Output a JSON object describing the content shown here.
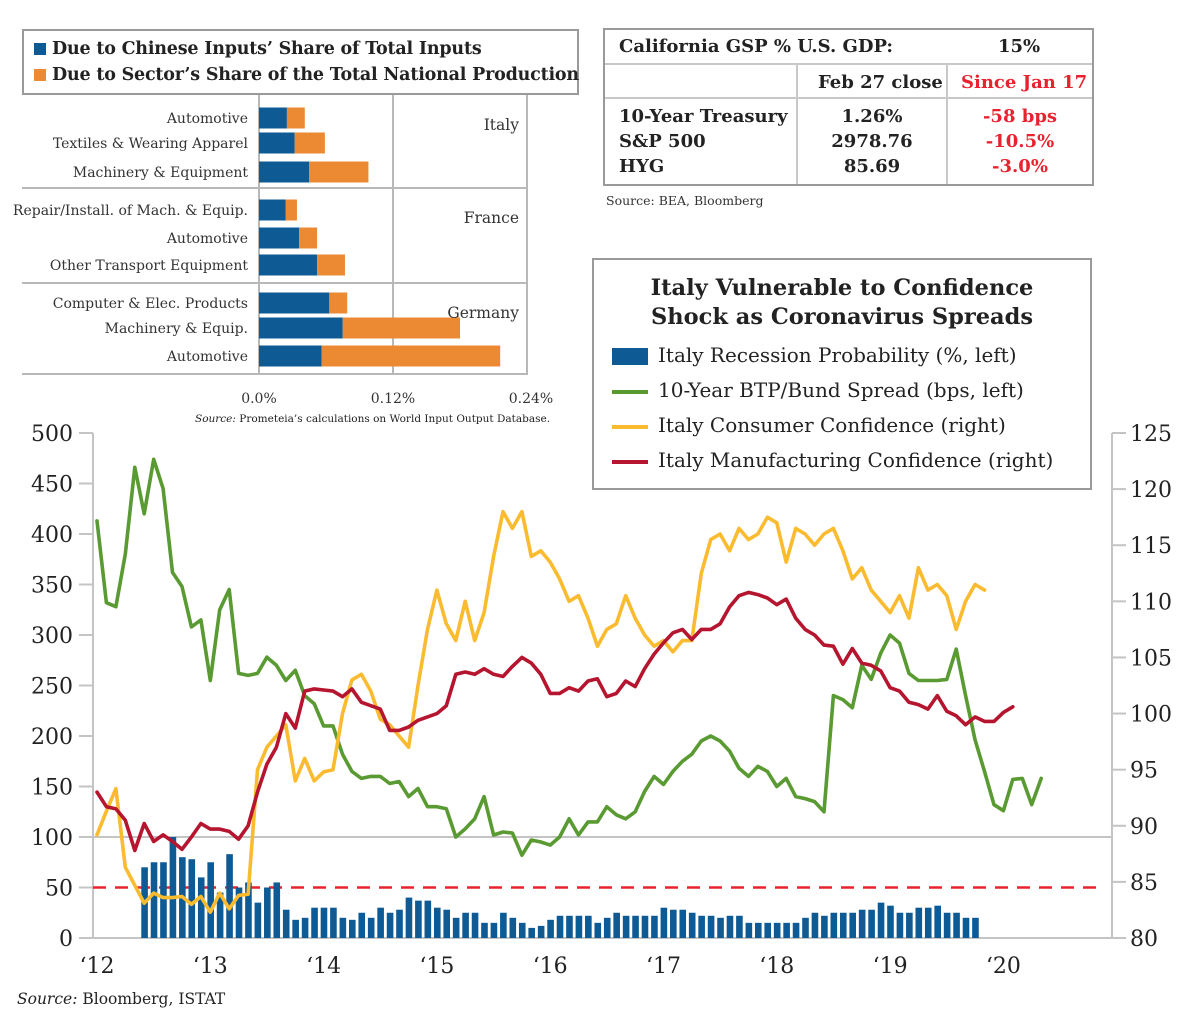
{
  "bar_chart_legend": {
    "items": [
      {
        "label": "Due to Chinese Inputs’ Share of Total Inputs",
        "color": "#0d5a94"
      },
      {
        "label": "Due to Sector’s Share of the Total National Production",
        "color": "#ec8a33"
      }
    ]
  },
  "market_table": {
    "header_label": "California GSP % U.S. GDP:",
    "header_value": "15%",
    "col_headers": [
      "Feb 27 close",
      "Since Jan 17"
    ],
    "rows": [
      {
        "name": "10-Year Treasury",
        "close": "1.26%",
        "change": "-58 bps"
      },
      {
        "name": "S&P 500",
        "close": "2978.76",
        "change": "-10.5%"
      },
      {
        "name": "HYG",
        "close": "85.69",
        "change": "-3.0%"
      }
    ],
    "source": "Source: BEA, Bloomberg"
  },
  "main_legend": {
    "title_line1": "Italy Vulnerable to Confidence",
    "title_line2": "Shock as Coronavirus Spreads",
    "items": [
      {
        "label": "Italy Recession Probability (%, left)",
        "color": "#0d5a94",
        "type": "bar"
      },
      {
        "label": "10-Year BTP/Bund Spread (bps, left)",
        "color": "#5a9a32",
        "type": "line"
      },
      {
        "label": "Italy Consumer Confidence (right)",
        "color": "#fbbb30",
        "type": "line"
      },
      {
        "label": "Italy Manufacturing Confidence (right)",
        "color": "#b5152f",
        "type": "line"
      }
    ]
  },
  "sources": {
    "bar_chart_source_italic": "Source:",
    "bar_chart_source_text": " Prometeia’s calculations on World Input Output Database.",
    "main_source_italic": "Source:",
    "main_source_text": " Bloomberg, ISTAT"
  },
  "chart_data": [
    {
      "type": "bar",
      "orientation": "horizontal-stacked",
      "title": "",
      "xlabel": "",
      "ylabel": "",
      "xlim": [
        0,
        0.24
      ],
      "x_ticks": [
        "0.0%",
        "0.12%",
        "0.24%"
      ],
      "groups": [
        {
          "name": "Italy",
          "categories": [
            "Automotive",
            "Textiles & Wearing Apparel",
            "Machinery & Equipment"
          ],
          "chinese_inputs": [
            0.025,
            0.032,
            0.045
          ],
          "sector_share": [
            0.016,
            0.027,
            0.053
          ]
        },
        {
          "name": "France",
          "categories": [
            "Repair/Install. of Mach. & Equip.",
            "Automotive",
            "Other Transport Equipment"
          ],
          "chinese_inputs": [
            0.024,
            0.036,
            0.052
          ],
          "sector_share": [
            0.01,
            0.016,
            0.025
          ]
        },
        {
          "name": "Germany",
          "categories": [
            "Computer &  Elec. Products",
            "Machinery & Equip.",
            "Automotive"
          ],
          "chinese_inputs": [
            0.063,
            0.075,
            0.056
          ],
          "sector_share": [
            0.016,
            0.105,
            0.16
          ]
        }
      ],
      "series_names": [
        "Due to Chinese Inputs’ Share of Total Inputs",
        "Due to Sector’s Share of the Total National Production"
      ],
      "grid": true
    },
    {
      "type": "line",
      "title": "Italy Vulnerable to Confidence Shock as Coronavirus Spreads",
      "x_ticks": [
        "‘12",
        "‘13",
        "‘14",
        "‘15",
        "‘16",
        "‘17",
        "‘18",
        "‘19",
        "‘20"
      ],
      "x_range_years": [
        2012.0,
        2020.25
      ],
      "left_axis": {
        "ylim": [
          0,
          500
        ],
        "ticks": [
          0,
          50,
          100,
          150,
          200,
          250,
          300,
          350,
          400,
          450,
          500
        ]
      },
      "right_axis": {
        "ylim": [
          80,
          125
        ],
        "ticks": [
          80,
          85,
          90,
          95,
          100,
          105,
          110,
          115,
          120,
          125
        ]
      },
      "reference_line": {
        "axis": "left",
        "value": 50,
        "style": "dashed",
        "color": "#e8232f"
      },
      "legend_position": "top-right",
      "series": [
        {
          "name": "Italy Recession Probability (%, left)",
          "type": "bar",
          "axis": "left",
          "start": 2012.42,
          "step_months": 1,
          "values": [
            70,
            75,
            75,
            100,
            80,
            78,
            60,
            75,
            45,
            83,
            50,
            55,
            35,
            50,
            55,
            28,
            18,
            20,
            30,
            30,
            30,
            20,
            18,
            25,
            20,
            30,
            25,
            28,
            40,
            37,
            37,
            30,
            28,
            20,
            25,
            25,
            15,
            15,
            25,
            20,
            15,
            10,
            12,
            18,
            22,
            22,
            22,
            22,
            15,
            20,
            25,
            22,
            22,
            22,
            22,
            30,
            28,
            28,
            25,
            22,
            22,
            20,
            22,
            22,
            15,
            15,
            15,
            15,
            15,
            15,
            20,
            25,
            22,
            25,
            25,
            25,
            28,
            28,
            35,
            32,
            25,
            25,
            30,
            30,
            32,
            25,
            25,
            20,
            20
          ]
        },
        {
          "name": "10-Year BTP/Bund Spread (bps, left)",
          "type": "line",
          "axis": "left",
          "start": 2012.0,
          "step_months": 1,
          "values": [
            413,
            332,
            328,
            380,
            466,
            420,
            474,
            445,
            362,
            348,
            308,
            315,
            255,
            325,
            345,
            262,
            260,
            262,
            278,
            270,
            255,
            265,
            240,
            232,
            210,
            210,
            182,
            165,
            158,
            160,
            160,
            153,
            155,
            140,
            148,
            130,
            130,
            128,
            100,
            108,
            118,
            140,
            102,
            105,
            104,
            82,
            97,
            95,
            92,
            100,
            118,
            102,
            115,
            115,
            130,
            122,
            118,
            125,
            145,
            160,
            152,
            165,
            175,
            182,
            195,
            200,
            195,
            185,
            168,
            160,
            170,
            165,
            150,
            158,
            140,
            138,
            135,
            125,
            240,
            236,
            228,
            270,
            256,
            282,
            300,
            292,
            262,
            255,
            255,
            255,
            256,
            286,
            240,
            196,
            165,
            132,
            126,
            157,
            158,
            132,
            158
          ]
        },
        {
          "name": "Italy Consumer Confidence (right)",
          "type": "line",
          "axis": "right",
          "start": 2012.0,
          "step_months": 1,
          "values": [
            89.2,
            91.3,
            93.3,
            86.3,
            84.7,
            83.1,
            84.0,
            83.6,
            83.6,
            83.7,
            83.0,
            83.7,
            82.3,
            84.0,
            82.6,
            83.8,
            83.9,
            95.0,
            97.0,
            98.0,
            99.0,
            94.0,
            96.0,
            94.0,
            94.8,
            95.0,
            100.0,
            103.0,
            103.5,
            102.0,
            99.5,
            99.0,
            98.0,
            97.0,
            102.5,
            107.5,
            111.0,
            108.0,
            106.5,
            110.0,
            106.5,
            109.0,
            114.0,
            118.0,
            116.5,
            118.0,
            114.0,
            114.5,
            113.5,
            112.0,
            110.0,
            110.5,
            108.5,
            106.0,
            107.5,
            108.0,
            110.5,
            108.5,
            107.0,
            106.0,
            106.5,
            105.5,
            106.5,
            106.5,
            112.5,
            115.5,
            116.0,
            114.5,
            116.5,
            115.5,
            116.0,
            117.5,
            117.0,
            113.5,
            116.5,
            116.0,
            115.0,
            116.0,
            116.5,
            114.5,
            112.0,
            113.0,
            111.0,
            110.0,
            109.0,
            110.5,
            108.5,
            113.0,
            111.0,
            111.5,
            110.5,
            107.5,
            110.0,
            111.5,
            111.0
          ]
        },
        {
          "name": "Italy Manufacturing Confidence (right)",
          "type": "line",
          "axis": "right",
          "start": 2012.0,
          "step_months": 1,
          "values": [
            93.0,
            91.7,
            91.5,
            90.5,
            87.8,
            90.2,
            88.6,
            89.2,
            88.6,
            87.9,
            89.0,
            90.2,
            89.7,
            89.7,
            89.5,
            88.8,
            90.0,
            93.0,
            95.5,
            97.0,
            100.0,
            98.7,
            102.0,
            102.2,
            102.1,
            102.0,
            101.5,
            102.2,
            101.0,
            100.7,
            100.4,
            98.5,
            98.5,
            98.8,
            99.4,
            99.7,
            100.0,
            100.7,
            103.5,
            103.7,
            103.5,
            104.0,
            103.5,
            103.3,
            104.2,
            105.0,
            104.5,
            103.5,
            101.8,
            101.8,
            102.3,
            102.0,
            102.9,
            103.1,
            101.5,
            101.8,
            102.9,
            102.4,
            104.0,
            105.3,
            106.3,
            107.2,
            107.5,
            106.6,
            107.5,
            107.5,
            108.0,
            109.5,
            110.5,
            110.8,
            110.6,
            110.3,
            109.7,
            110.2,
            108.5,
            107.5,
            107.0,
            106.1,
            106.0,
            104.4,
            105.8,
            104.5,
            104.3,
            103.8,
            102.3,
            102.0,
            101.0,
            100.8,
            100.4,
            101.6,
            100.2,
            99.8,
            99.0,
            99.7,
            99.3,
            99.3,
            100.1,
            100.6
          ]
        }
      ]
    }
  ]
}
